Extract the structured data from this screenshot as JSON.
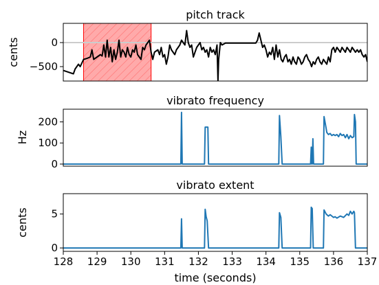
{
  "chart_data": [
    {
      "type": "line",
      "title": "pitch track",
      "xlabel": "",
      "ylabel": "cents",
      "xlim": [
        128,
        137
      ],
      "ylim": [
        -800,
        400
      ],
      "yticks": [
        0,
        -500
      ],
      "ytick_labels": [
        "0",
        "−500"
      ],
      "reference_line": 0,
      "highlight": {
        "x_range": [
          128.6,
          130.6
        ],
        "fill": "#ffaaaa",
        "hatch": "#ff7070",
        "edge": "#ff0000"
      },
      "line_color": "#000000",
      "series": [
        {
          "x": [
            128.0,
            128.3,
            128.35,
            128.45,
            128.5,
            128.6,
            128.7,
            128.8,
            128.85,
            128.9,
            129.0,
            129.1,
            129.15,
            129.2,
            129.25,
            129.3,
            129.35,
            129.4,
            129.45,
            129.5,
            129.55,
            129.6,
            129.65,
            129.7,
            129.75,
            129.8,
            129.85,
            129.9,
            129.95,
            130.0,
            130.05,
            130.1,
            130.15,
            130.2,
            130.25,
            130.3,
            130.35,
            130.4,
            130.45,
            130.5,
            130.55,
            130.6,
            130.65,
            130.7,
            130.8,
            130.85,
            130.9,
            130.95,
            131.0,
            131.05,
            131.1,
            131.15,
            131.2,
            131.25,
            131.3,
            131.35,
            131.4,
            131.45,
            131.5,
            131.55,
            131.6,
            131.65,
            131.7,
            131.75,
            131.8,
            131.85,
            131.9,
            131.95,
            132.0,
            132.05,
            132.1,
            132.15,
            132.2,
            132.25,
            132.3,
            132.35,
            132.4,
            132.45,
            132.5,
            132.55,
            132.58,
            132.6,
            132.65,
            132.7,
            132.8,
            132.9,
            133.0,
            133.1,
            133.2,
            133.3,
            133.4,
            133.5,
            133.6,
            133.7,
            133.75,
            133.8,
            133.85,
            133.9,
            133.95,
            134.0,
            134.05,
            134.1,
            134.15,
            134.2,
            134.25,
            134.3,
            134.35,
            134.4,
            134.45,
            134.5,
            134.55,
            134.6,
            134.65,
            134.7,
            134.75,
            134.8,
            134.85,
            134.9,
            134.95,
            135.0,
            135.05,
            135.1,
            135.15,
            135.2,
            135.25,
            135.3,
            135.35,
            135.4,
            135.45,
            135.5,
            135.55,
            135.6,
            135.65,
            135.7,
            135.75,
            135.8,
            135.85,
            135.9,
            135.95,
            136.0,
            136.05,
            136.1,
            136.15,
            136.2,
            136.25,
            136.3,
            136.35,
            136.4,
            136.45,
            136.5,
            136.55,
            136.6,
            136.65,
            136.7,
            136.75,
            136.8,
            136.85,
            136.9,
            136.95,
            137.0
          ],
          "y": [
            -580,
            -650,
            -550,
            -450,
            -500,
            -350,
            -330,
            -300,
            -150,
            -350,
            -300,
            -250,
            -280,
            -50,
            -300,
            50,
            -300,
            -100,
            -400,
            -150,
            -350,
            -200,
            50,
            -300,
            -150,
            -200,
            -300,
            -100,
            -250,
            -300,
            -150,
            -200,
            -50,
            -250,
            -300,
            -350,
            -100,
            -150,
            -50,
            0,
            50,
            -200,
            -350,
            -200,
            -150,
            -250,
            -100,
            -300,
            -250,
            -450,
            -300,
            -50,
            -150,
            -200,
            -250,
            -150,
            -100,
            -50,
            50,
            0,
            -50,
            250,
            0,
            -100,
            -50,
            -300,
            -200,
            -100,
            -50,
            0,
            -150,
            -100,
            -200,
            -150,
            -300,
            -100,
            -200,
            -150,
            -250,
            -50,
            -800,
            -350,
            0,
            -50,
            -10,
            -10,
            -10,
            -10,
            -10,
            -10,
            -10,
            -10,
            -10,
            -10,
            50,
            200,
            50,
            -100,
            -50,
            -150,
            -300,
            -200,
            -250,
            -100,
            -350,
            -50,
            -300,
            -150,
            -350,
            -400,
            -300,
            -250,
            -400,
            -350,
            -450,
            -300,
            -400,
            -450,
            -300,
            -350,
            -450,
            -400,
            -300,
            -250,
            -350,
            -400,
            -500,
            -400,
            -450,
            -350,
            -300,
            -400,
            -450,
            -350,
            -400,
            -450,
            -300,
            -400,
            -150,
            -100,
            -200,
            -100,
            -150,
            -200,
            -100,
            -150,
            -200,
            -100,
            -150,
            -200,
            -100,
            -150,
            -200,
            -150,
            -200,
            -150,
            -250,
            -300,
            -250,
            -400
          ]
        }
      ]
    },
    {
      "type": "line",
      "title": "vibrato frequency",
      "xlabel": "",
      "ylabel": "Hz",
      "xlim": [
        128,
        137
      ],
      "ylim": [
        -10,
        260
      ],
      "yticks": [
        200,
        100,
        0
      ],
      "ytick_labels": [
        "200",
        "100",
        "0"
      ],
      "line_color": "#1f77b4",
      "series": [
        {
          "x": [
            128.0,
            131.48,
            131.5,
            131.52,
            131.55,
            132.18,
            132.2,
            132.28,
            132.3,
            134.38,
            134.4,
            134.44,
            134.48,
            135.32,
            135.34,
            135.36,
            135.37,
            135.39,
            135.41,
            135.7,
            135.72,
            135.78,
            135.8,
            135.85,
            135.9,
            135.95,
            136.0,
            136.05,
            136.1,
            136.15,
            136.2,
            136.25,
            136.3,
            136.35,
            136.4,
            136.45,
            136.5,
            136.55,
            136.6,
            136.62,
            136.65,
            136.67,
            137.0
          ],
          "y": [
            0,
            0,
            245,
            0,
            0,
            0,
            175,
            175,
            0,
            0,
            230,
            130,
            0,
            0,
            80,
            0,
            0,
            120,
            0,
            0,
            225,
            170,
            150,
            140,
            145,
            135,
            140,
            135,
            140,
            130,
            145,
            135,
            140,
            125,
            140,
            120,
            135,
            125,
            130,
            235,
            200,
            0,
            0
          ]
        }
      ]
    },
    {
      "type": "line",
      "title": "vibrato extent",
      "xlabel": "time (seconds)",
      "ylabel": "cents",
      "xlim": [
        128,
        137
      ],
      "ylim": [
        -0.5,
        8
      ],
      "yticks": [
        5,
        0
      ],
      "ytick_labels": [
        "5",
        "0"
      ],
      "xticks": [
        128,
        129,
        130,
        131,
        132,
        133,
        134,
        135,
        136,
        137
      ],
      "xtick_labels": [
        "128",
        "129",
        "130",
        "131",
        "132",
        "133",
        "134",
        "135",
        "136",
        "137"
      ],
      "line_color": "#1f77b4",
      "series": [
        {
          "x": [
            128.0,
            131.48,
            131.5,
            131.52,
            131.55,
            132.18,
            132.2,
            132.23,
            132.26,
            132.3,
            134.38,
            134.4,
            134.44,
            134.48,
            135.32,
            135.34,
            135.37,
            135.4,
            135.7,
            135.72,
            135.78,
            135.85,
            135.9,
            136.0,
            136.05,
            136.1,
            136.2,
            136.3,
            136.4,
            136.45,
            136.5,
            136.55,
            136.6,
            136.62,
            136.65,
            137.0
          ],
          "y": [
            0,
            0,
            4.3,
            0,
            0,
            0,
            5.7,
            4.6,
            4.0,
            0,
            0,
            5.2,
            4.5,
            0,
            0,
            6.0,
            5.8,
            0,
            0,
            5.6,
            5.0,
            4.7,
            4.9,
            4.5,
            4.6,
            4.4,
            4.7,
            4.5,
            5.0,
            4.8,
            5.4,
            5.0,
            5.4,
            5.2,
            0,
            0
          ]
        }
      ]
    }
  ]
}
